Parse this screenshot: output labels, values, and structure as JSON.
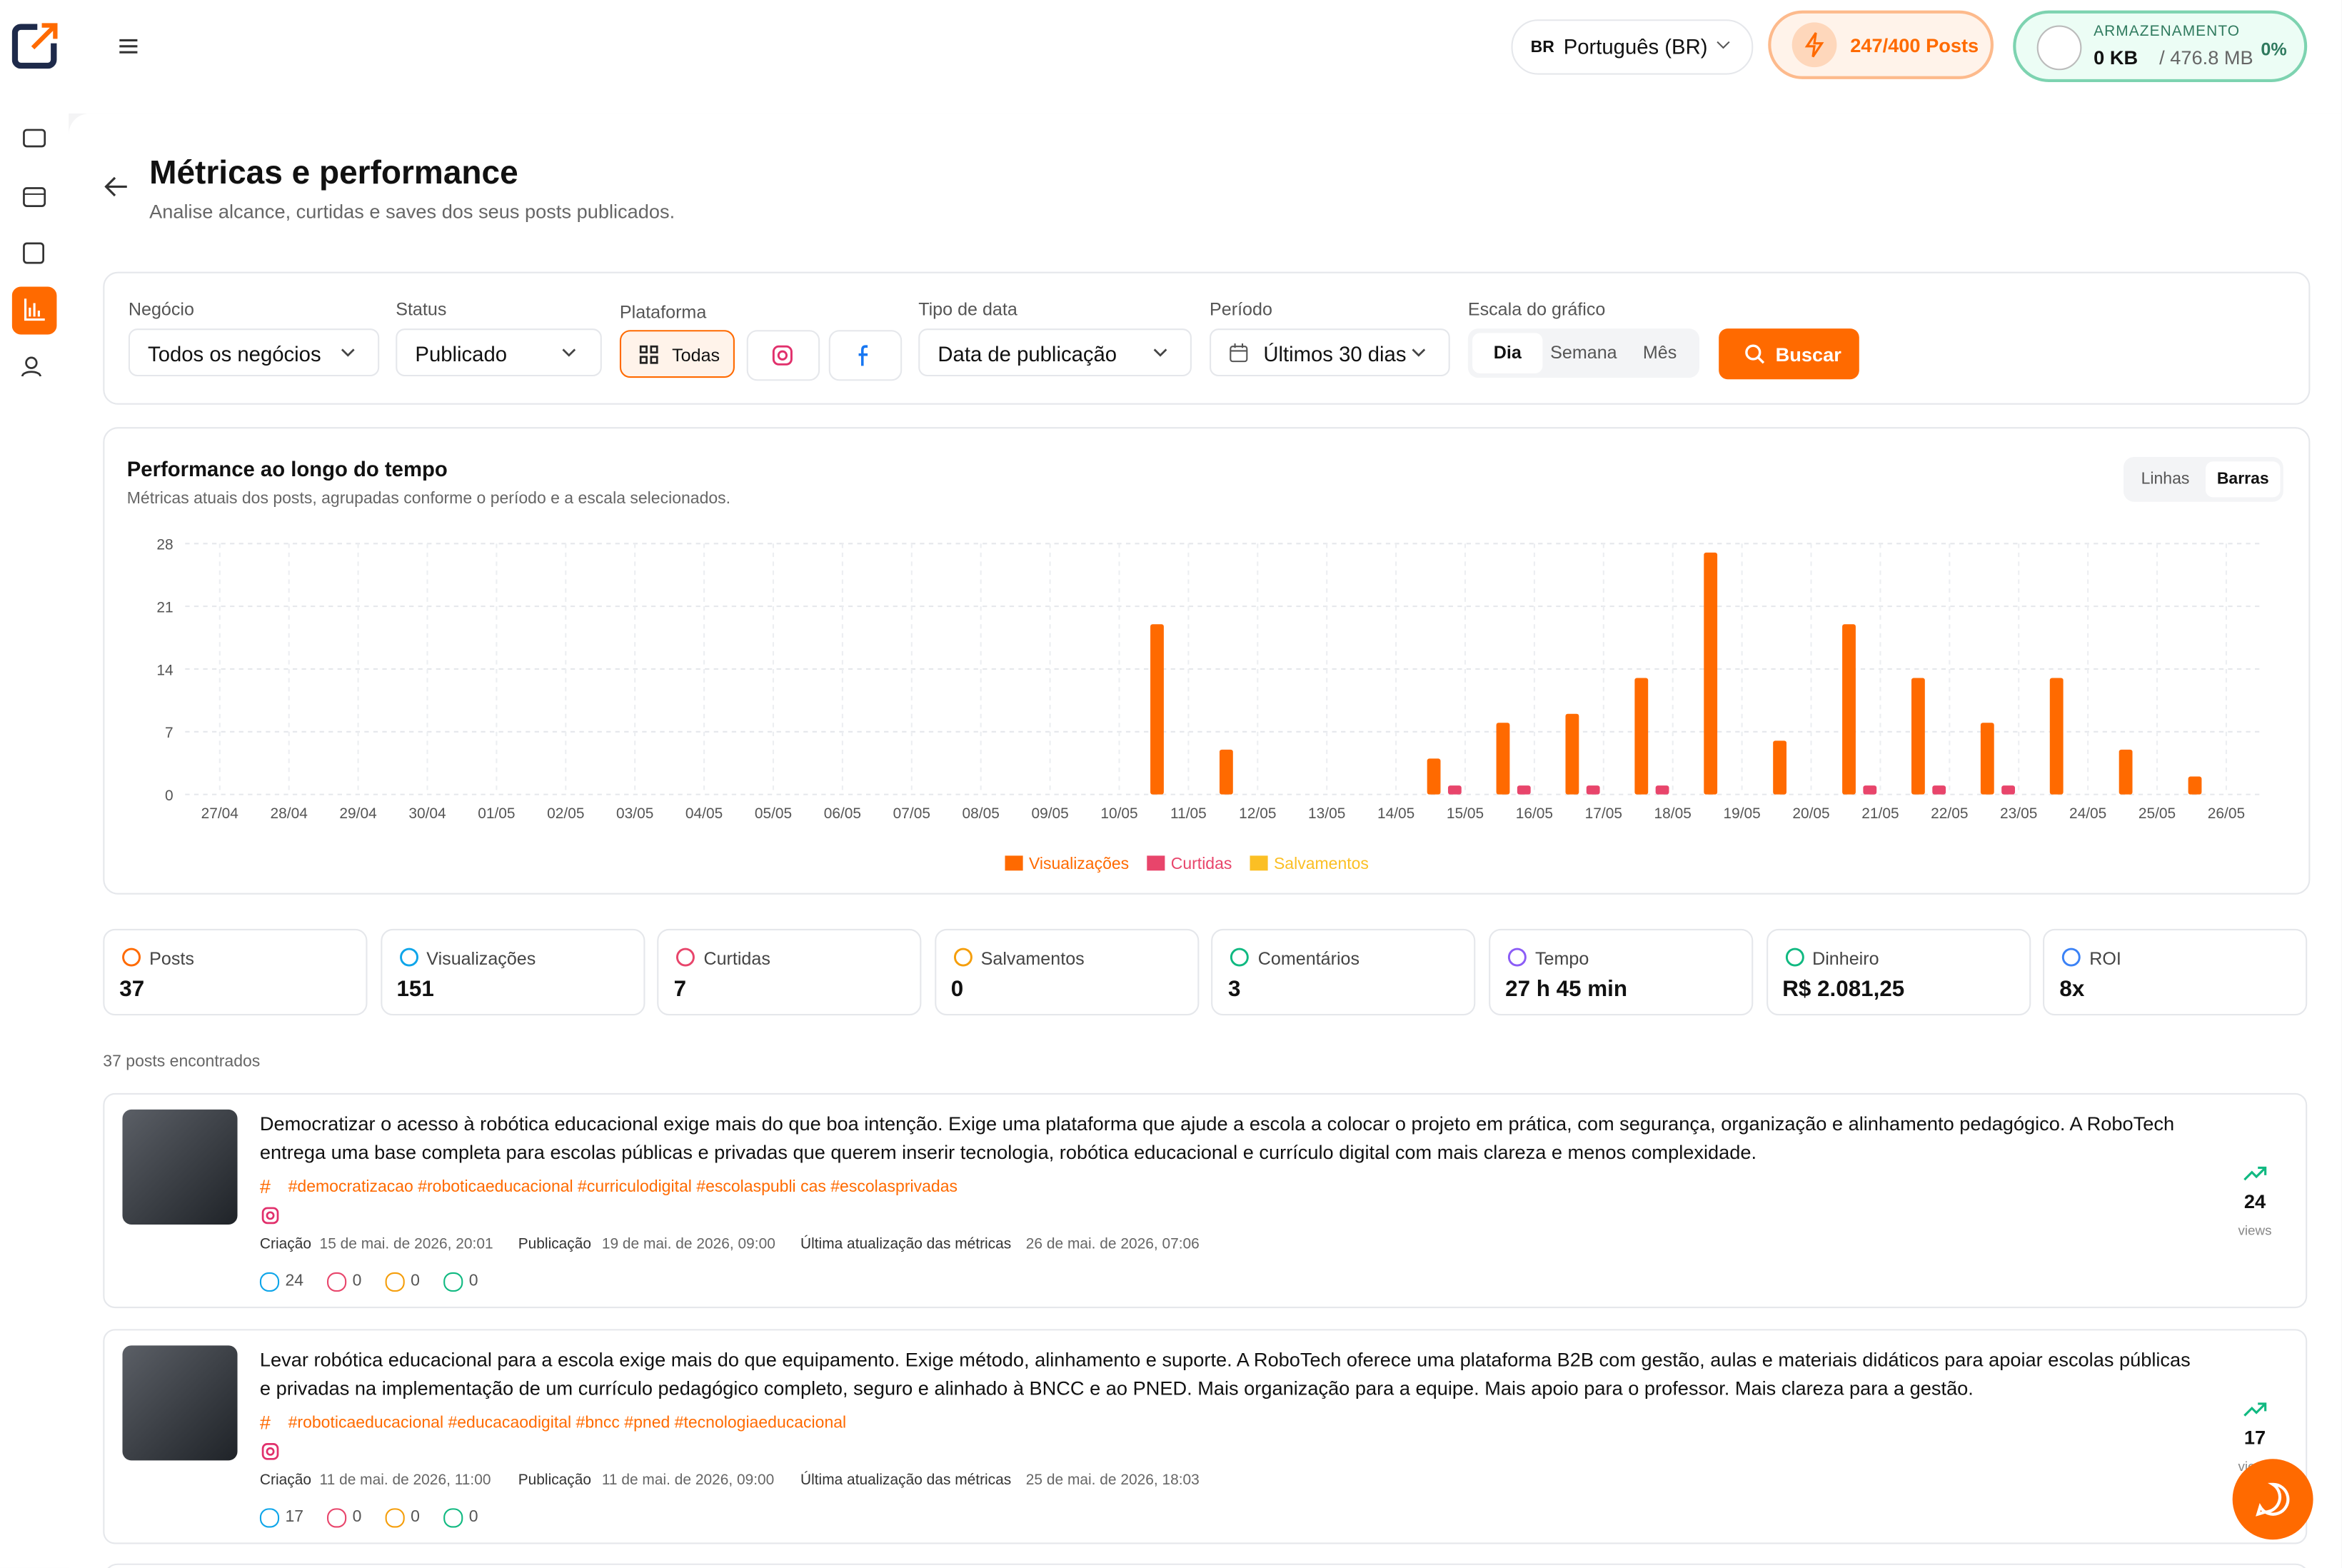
{
  "header": {
    "language_code": "BR",
    "language": "Português (BR)",
    "posts_quota": "247/400 Posts",
    "storage_label": "ARMAZENAMENTO",
    "storage_used": "0 KB",
    "storage_total": "/ 476.8 MB",
    "storage_percent": "0%"
  },
  "page": {
    "title": "Métricas e performance",
    "subtitle": "Analise alcance, curtidas e saves dos seus posts publicados."
  },
  "filters": {
    "business_label": "Negócio",
    "business": "Todos os negócios",
    "status_label": "Status",
    "status": "Publicado",
    "platform_label": "Plataforma",
    "platform_all": "Todas",
    "date_type_label": "Tipo de data",
    "date_type": "Data de publicação",
    "period_label": "Período",
    "period": "Últimos 30 dias",
    "scale_label": "Escala do gráfico",
    "scales": [
      "Dia",
      "Semana",
      "Mês"
    ],
    "search": "Buscar"
  },
  "chart_data": {
    "type": "bar",
    "title": "Performance ao longo do tempo",
    "subtitle": "Métricas atuais dos posts, agrupadas conforme o período e a escala selecionados.",
    "view_options": [
      "Linhas",
      "Barras"
    ],
    "categories": [
      "27/04",
      "28/04",
      "29/04",
      "30/04",
      "01/05",
      "02/05",
      "03/05",
      "04/05",
      "05/05",
      "06/05",
      "07/05",
      "08/05",
      "09/05",
      "10/05",
      "11/05",
      "12/05",
      "13/05",
      "14/05",
      "15/05",
      "16/05",
      "17/05",
      "18/05",
      "19/05",
      "20/05",
      "21/05",
      "22/05",
      "23/05",
      "24/05",
      "25/05",
      "26/05"
    ],
    "series": [
      {
        "name": "Visualizações",
        "color": "#ff6a00",
        "values": [
          0,
          0,
          0,
          0,
          0,
          0,
          0,
          0,
          0,
          0,
          0,
          0,
          0,
          0,
          19,
          5,
          0,
          0,
          4,
          8,
          9,
          13,
          27,
          6,
          19,
          13,
          8,
          13,
          5,
          2
        ]
      },
      {
        "name": "Curtidas",
        "color": "#e8456b",
        "values": [
          0,
          0,
          0,
          0,
          0,
          0,
          0,
          0,
          0,
          0,
          0,
          0,
          0,
          0,
          0,
          0,
          0,
          0,
          1,
          1,
          1,
          1,
          0,
          0,
          1,
          1,
          1,
          0,
          0,
          0
        ]
      },
      {
        "name": "Salvamentos",
        "color": "#fbbf24",
        "values": [
          0,
          0,
          0,
          0,
          0,
          0,
          0,
          0,
          0,
          0,
          0,
          0,
          0,
          0,
          0,
          0,
          0,
          0,
          0,
          0,
          0,
          0,
          0,
          0,
          0,
          0,
          0,
          0,
          0,
          0
        ]
      }
    ],
    "ylim": [
      0,
      28
    ],
    "yticks": [
      0,
      7,
      14,
      21,
      28
    ],
    "grid": true,
    "legend": "bottom"
  },
  "stats": [
    {
      "label": "Posts",
      "value": 37,
      "color": "#ff6a00"
    },
    {
      "label": "Visualizações",
      "value": 151,
      "color": "#0ea5e9"
    },
    {
      "label": "Curtidas",
      "value": 7,
      "color": "#e8456b"
    },
    {
      "label": "Salvamentos",
      "value": 0,
      "color": "#f59e0b"
    },
    {
      "label": "Comentários",
      "value": 3,
      "color": "#10b981"
    },
    {
      "label": "Tempo",
      "value": "27 h 45 min",
      "color": "#8b5cf6"
    },
    {
      "label": "Dinheiro",
      "value": "R$ 2.081,25",
      "color": "#10b981"
    },
    {
      "label": "ROI",
      "value": "8x",
      "color": "#3b82f6"
    }
  ],
  "posts_count": "37 posts encontrados",
  "post_labels": {
    "created": "Criação",
    "published": "Publicação",
    "updated": "Última atualização das métricas",
    "views": "views"
  },
  "posts": [
    {
      "text": "Democratizar o acesso à robótica educacional exige mais do que boa intenção. Exige uma plataforma que ajude a escola a colocar o projeto em prática, com segurança, organização e alinhamento pedagógico. A RoboTech entrega uma base completa para escolas públicas e privadas que querem inserir tecnologia, robótica educacional e currículo digital com mais clareza e menos complexidade.",
      "hashtags": "#democratizacao #roboticaeducacional #curriculodigital #escolaspubli cas #escolasprivadas",
      "created": "15 de mai. de 2026, 20:01",
      "published": "19 de mai. de 2026, 09:00",
      "updated": "26 de mai. de 2026, 07:06",
      "views": 24,
      "likes": 0,
      "saves": 0,
      "comments": 0
    },
    {
      "text": "Levar robótica educacional para a escola exige mais do que equipamento. Exige método, alinhamento e suporte. A RoboTech oferece uma plataforma B2B com gestão, aulas e materiais didáticos para apoiar escolas públicas e privadas na implementação de um currículo pedagógico completo, seguro e alinhado à BNCC e ao PNED. Mais organização para a equipe. Mais apoio para o professor. Mais clareza para a gestão.",
      "hashtags": "#roboticaeducacional #educacaodigital #bncc #pned #tecnologiaeducacional",
      "created": "11 de mai. de 2026, 11:00",
      "published": "11 de mai. de 2026, 09:00",
      "updated": "25 de mai. de 2026, 18:03",
      "views": 17,
      "likes": 0,
      "saves": 0,
      "comments": 0
    }
  ]
}
